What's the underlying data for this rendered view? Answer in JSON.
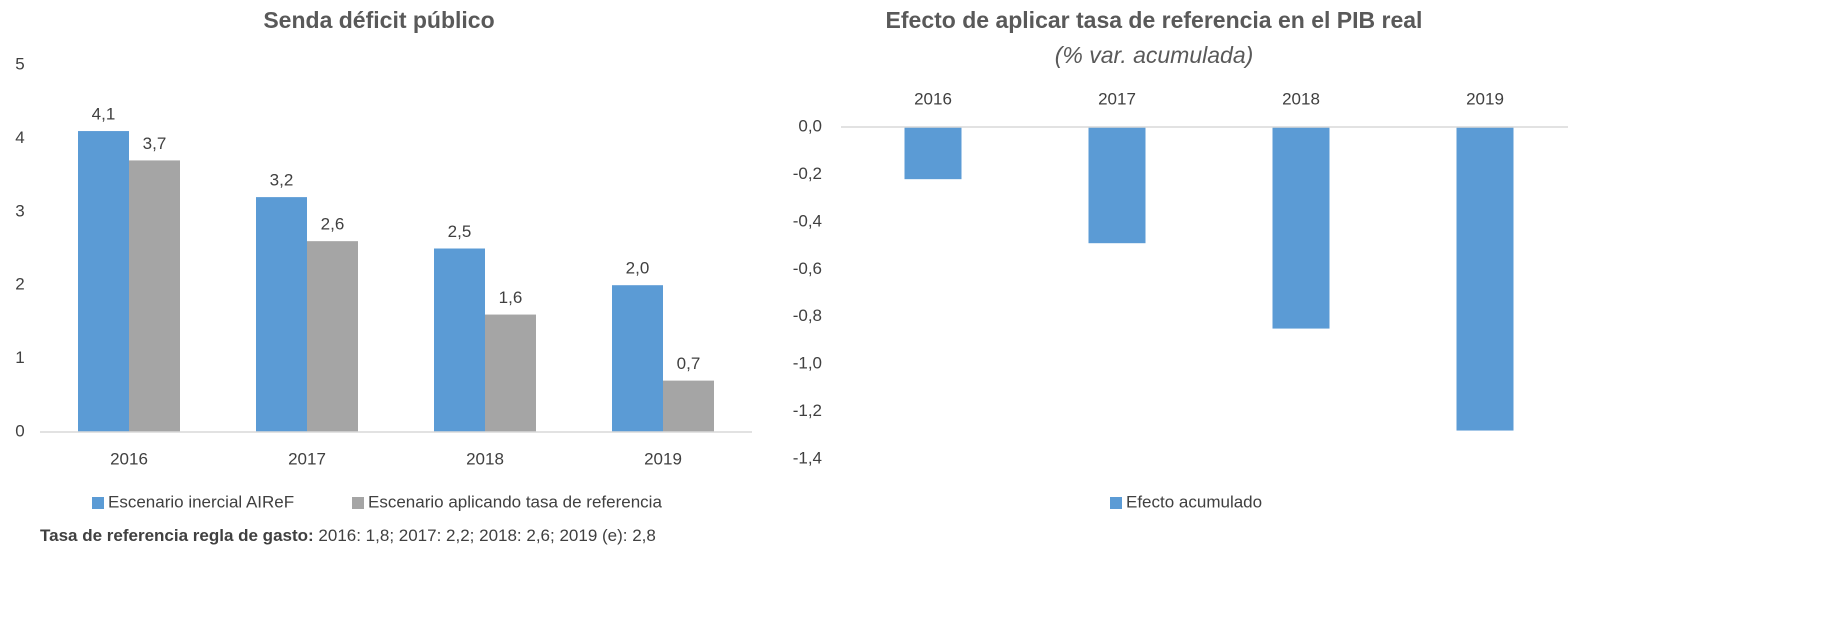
{
  "chart_data": [
    {
      "type": "bar",
      "title": "Senda déficit público",
      "categories": [
        "2016",
        "2017",
        "2018",
        "2019"
      ],
      "series": [
        {
          "name": "Escenario inercial AIReF",
          "color": "#5b9bd5",
          "values": [
            4.1,
            3.2,
            2.5,
            2.0
          ],
          "value_labels": [
            "4,1",
            "3,2",
            "2,5",
            "2,0"
          ]
        },
        {
          "name": "Escenario aplicando tasa de referencia",
          "color": "#a5a5a5",
          "values": [
            3.7,
            2.6,
            1.6,
            0.7
          ],
          "value_labels": [
            "3,7",
            "2,6",
            "1,6",
            "0,7"
          ]
        }
      ],
      "ylim": [
        0,
        5
      ],
      "yticks": [
        0,
        1,
        2,
        3,
        4,
        5
      ],
      "grid": false,
      "legend": "bottom",
      "note": {
        "label": "Tasa de referencia regla de gasto:",
        "text": "2016: 1,8;  2017: 2,2; 2018: 2,6; 2019 (e): 2,8"
      }
    },
    {
      "type": "bar",
      "title": "Efecto de aplicar tasa de referencia en el PIB real",
      "subtitle": "(% var.  acumulada)",
      "categories": [
        "2016",
        "2017",
        "2018",
        "2019"
      ],
      "series": [
        {
          "name": "Efecto acumulado",
          "color": "#5b9bd5",
          "values": [
            -0.22,
            -0.49,
            -0.85,
            -1.28
          ]
        }
      ],
      "ylim": [
        -1.4,
        0
      ],
      "yticks": [
        {
          "value": 0,
          "label": "0,0"
        },
        {
          "value": -0.2,
          "label": "-0,2"
        },
        {
          "value": -0.4,
          "label": "-0,4"
        },
        {
          "value": -0.6,
          "label": "-0,6"
        },
        {
          "value": -0.8,
          "label": "-0,8"
        },
        {
          "value": -1.0,
          "label": "-1,0"
        },
        {
          "value": -1.2,
          "label": "-1,2"
        },
        {
          "value": -1.4,
          "label": "-1,4"
        }
      ],
      "grid": false,
      "legend": "bottom"
    }
  ]
}
